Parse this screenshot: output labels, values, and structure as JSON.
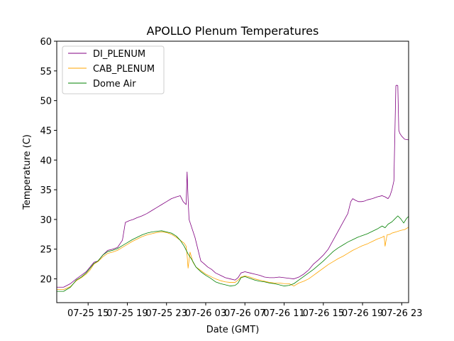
{
  "chart_data": {
    "type": "line",
    "title": "APOLLO Plenum Temperatures",
    "xlabel": "Date (GMT)",
    "ylabel": "Temperature (C)",
    "x_unit": "hours",
    "xlim": [
      11.8,
      47.7
    ],
    "ylim": [
      16,
      60
    ],
    "yticks": [
      20,
      25,
      30,
      35,
      40,
      45,
      50,
      55,
      60
    ],
    "xticks": [
      {
        "x": 15,
        "label": "07-25 15"
      },
      {
        "x": 19,
        "label": "07-25 19"
      },
      {
        "x": 23,
        "label": "07-25 23"
      },
      {
        "x": 27,
        "label": "07-26 03"
      },
      {
        "x": 31,
        "label": "07-26 07"
      },
      {
        "x": 35,
        "label": "07-26 11"
      },
      {
        "x": 39,
        "label": "07-26 15"
      },
      {
        "x": 43,
        "label": "07-26 19"
      },
      {
        "x": 47,
        "label": "07-26 23"
      }
    ],
    "grid": false,
    "legend_position": "top-left",
    "series": [
      {
        "name": "DI_PLENUM",
        "color": "#800080",
        "x": [
          11.8,
          12.5,
          13.2,
          13.8,
          14.3,
          14.8,
          15.2,
          15.6,
          16.0,
          16.5,
          17.0,
          17.5,
          18.0,
          18.5,
          18.8,
          19.2,
          19.6,
          20.0,
          20.5,
          21.0,
          21.5,
          22.0,
          22.5,
          23.0,
          23.5,
          24.0,
          24.4,
          24.7,
          25.0,
          25.1,
          25.2,
          25.3,
          25.6,
          25.9,
          26.2,
          26.5,
          26.8,
          27.2,
          27.6,
          28.0,
          28.5,
          29.0,
          29.5,
          30.0,
          30.3,
          30.6,
          31.0,
          31.5,
          32.0,
          32.5,
          33.0,
          33.5,
          34.0,
          34.5,
          35.0,
          35.5,
          36.0,
          36.5,
          37.0,
          37.5,
          38.0,
          38.5,
          39.0,
          39.5,
          40.0,
          40.5,
          41.0,
          41.5,
          41.8,
          42.0,
          42.3,
          42.6,
          42.9,
          43.2,
          43.5,
          44.0,
          44.5,
          45.0,
          45.3,
          45.6,
          45.8,
          46.0,
          46.2,
          46.4,
          46.5,
          46.6,
          46.7,
          46.8,
          47.0,
          47.3,
          47.7
        ],
        "y": [
          18.6,
          18.6,
          19.2,
          20.0,
          20.6,
          21.2,
          22.0,
          22.8,
          23.0,
          24.0,
          24.8,
          25.0,
          25.3,
          26.5,
          29.5,
          29.8,
          30.0,
          30.3,
          30.6,
          31.0,
          31.5,
          32.0,
          32.5,
          33.0,
          33.5,
          33.8,
          34.0,
          33.0,
          32.5,
          38.0,
          33.5,
          30.0,
          28.5,
          27.0,
          25.0,
          23.0,
          22.6,
          22.0,
          21.6,
          21.0,
          20.6,
          20.2,
          20.0,
          19.8,
          20.2,
          21.0,
          21.2,
          21.0,
          20.8,
          20.6,
          20.3,
          20.2,
          20.2,
          20.3,
          20.2,
          20.1,
          20.0,
          20.3,
          20.8,
          21.5,
          22.5,
          23.2,
          24.0,
          25.0,
          26.5,
          28.0,
          29.5,
          31.0,
          33.0,
          33.5,
          33.2,
          33.0,
          33.0,
          33.1,
          33.3,
          33.5,
          33.8,
          34.0,
          33.8,
          33.5,
          34.0,
          35.0,
          36.5,
          52.5,
          52.6,
          52.5,
          45.0,
          44.5,
          44.0,
          43.5,
          43.4
        ]
      },
      {
        "name": "CAB_PLENUM",
        "color": "#ffa500",
        "x": [
          11.8,
          12.5,
          13.2,
          13.8,
          14.3,
          14.8,
          15.2,
          15.6,
          16.0,
          16.5,
          17.0,
          17.5,
          18.0,
          18.5,
          19.0,
          19.5,
          20.0,
          20.5,
          21.0,
          21.5,
          22.0,
          22.5,
          23.0,
          23.5,
          24.0,
          24.4,
          24.8,
          25.0,
          25.1,
          25.2,
          25.4,
          25.7,
          26.0,
          26.5,
          27.0,
          27.5,
          28.0,
          28.5,
          29.0,
          29.5,
          30.0,
          30.3,
          30.6,
          31.0,
          31.5,
          32.0,
          32.5,
          33.0,
          33.5,
          34.0,
          34.5,
          35.0,
          35.5,
          36.0,
          36.5,
          37.0,
          37.5,
          38.0,
          38.5,
          39.0,
          39.5,
          40.0,
          40.5,
          41.0,
          41.5,
          42.0,
          42.5,
          43.0,
          43.5,
          44.0,
          44.5,
          45.0,
          45.2,
          45.3,
          45.5,
          45.8,
          46.0,
          46.2,
          46.4,
          46.6,
          46.8,
          47.0,
          47.3,
          47.7
        ],
        "y": [
          18.2,
          18.2,
          18.7,
          19.7,
          20.2,
          20.8,
          21.5,
          22.5,
          22.9,
          23.7,
          24.3,
          24.5,
          24.8,
          25.3,
          25.8,
          26.3,
          26.7,
          27.1,
          27.4,
          27.6,
          27.8,
          27.9,
          27.8,
          27.5,
          27.0,
          26.5,
          26.0,
          25.5,
          24.0,
          21.8,
          24.5,
          22.8,
          22.0,
          21.4,
          20.8,
          20.4,
          20.0,
          19.7,
          19.5,
          19.4,
          19.4,
          19.8,
          20.3,
          20.5,
          20.3,
          20.0,
          19.8,
          19.6,
          19.4,
          19.3,
          19.3,
          19.2,
          19.2,
          18.8,
          19.3,
          19.6,
          20.0,
          20.6,
          21.2,
          21.8,
          22.4,
          22.9,
          23.4,
          23.8,
          24.3,
          24.8,
          25.2,
          25.6,
          25.9,
          26.3,
          26.7,
          27.0,
          27.2,
          25.5,
          27.4,
          27.5,
          27.7,
          27.8,
          27.9,
          28.0,
          28.1,
          28.2,
          28.3,
          28.7
        ]
      },
      {
        "name": "Dome Air",
        "color": "#008000",
        "x": [
          11.8,
          12.5,
          13.2,
          13.8,
          14.3,
          14.8,
          15.2,
          15.6,
          16.0,
          16.5,
          17.0,
          17.5,
          18.0,
          18.5,
          19.0,
          19.5,
          20.0,
          20.5,
          21.0,
          21.5,
          22.0,
          22.5,
          23.0,
          23.5,
          24.0,
          24.4,
          24.8,
          25.2,
          25.6,
          26.0,
          26.5,
          27.0,
          27.5,
          28.0,
          28.5,
          29.0,
          29.5,
          30.0,
          30.3,
          30.6,
          31.0,
          31.5,
          32.0,
          32.5,
          33.0,
          33.5,
          34.0,
          34.5,
          35.0,
          35.5,
          36.0,
          36.5,
          37.0,
          37.5,
          38.0,
          38.5,
          39.0,
          39.5,
          40.0,
          40.5,
          41.0,
          41.5,
          42.0,
          42.5,
          43.0,
          43.5,
          44.0,
          44.5,
          45.0,
          45.3,
          45.6,
          46.0,
          46.3,
          46.6,
          46.9,
          47.2,
          47.5,
          47.7
        ],
        "y": [
          17.9,
          17.9,
          18.6,
          19.8,
          20.3,
          21.0,
          21.8,
          22.6,
          23.0,
          24.0,
          24.6,
          24.8,
          25.1,
          25.6,
          26.1,
          26.6,
          27.0,
          27.4,
          27.7,
          27.9,
          28.0,
          28.1,
          27.9,
          27.7,
          27.2,
          26.5,
          25.5,
          24.2,
          23.2,
          22.0,
          21.2,
          20.6,
          20.1,
          19.5,
          19.2,
          19.0,
          18.8,
          18.9,
          19.3,
          20.2,
          20.4,
          20.1,
          19.8,
          19.6,
          19.5,
          19.3,
          19.2,
          19.0,
          18.8,
          18.9,
          19.2,
          19.8,
          20.4,
          21.0,
          21.6,
          22.3,
          23.0,
          23.8,
          24.6,
          25.2,
          25.7,
          26.2,
          26.6,
          27.0,
          27.3,
          27.6,
          28.0,
          28.4,
          28.9,
          28.6,
          29.2,
          29.6,
          30.1,
          30.6,
          30.1,
          29.4,
          30.2,
          30.5
        ]
      }
    ]
  }
}
